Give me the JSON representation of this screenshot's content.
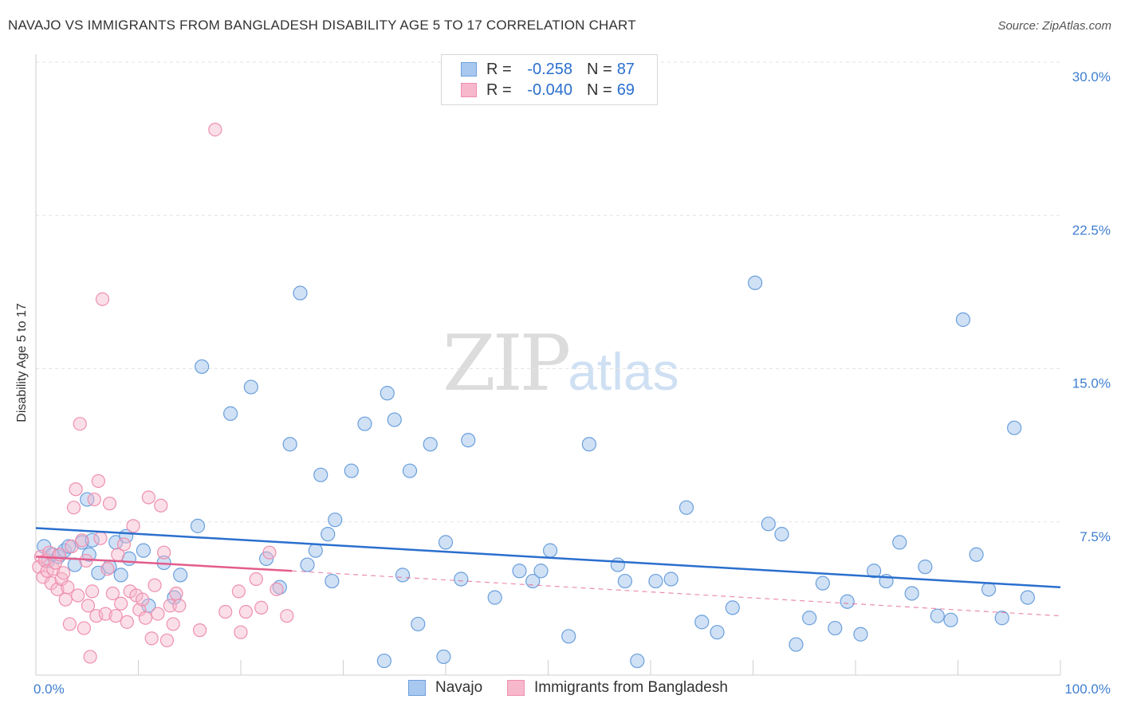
{
  "header": {
    "title": "NAVAJO VS IMMIGRANTS FROM BANGLADESH DISABILITY AGE 5 TO 17 CORRELATION CHART",
    "source": "Source: ZipAtlas.com"
  },
  "watermark": {
    "zip": "ZIP",
    "atlas": "atlas"
  },
  "legend": {
    "rows": [
      {
        "r_label": "R =",
        "r_value": "-0.258",
        "n_label": "N =",
        "n_value": "87"
      },
      {
        "r_label": "R =",
        "r_value": "-0.040",
        "n_label": "N =",
        "n_value": "69"
      }
    ]
  },
  "colors": {
    "navajo_fill": "#a9c8ef",
    "navajo_stroke": "#6a9fdc",
    "navajo_line": "#2a6fce",
    "bangladesh_fill": "#f7b8cc",
    "bangladesh_stroke": "#ee8fae",
    "bangladesh_line": "#e35c8c",
    "tick_label": "#3f7fd0",
    "grid": "#e3e3e3"
  },
  "chart_data": {
    "type": "scatter",
    "title": "NAVAJO VS IMMIGRANTS FROM BANGLADESH DISABILITY AGE 5 TO 17 CORRELATION CHART",
    "xlabel": "",
    "ylabel": "Disability Age 5 to 17",
    "xlim": [
      0,
      100
    ],
    "ylim": [
      0,
      30
    ],
    "x_tick_labels": [
      "0.0%",
      "100.0%"
    ],
    "y_ticks": [
      7.5,
      15.0,
      22.5,
      30.0
    ],
    "y_tick_labels": [
      "7.5%",
      "15.0%",
      "22.5%",
      "30.0%"
    ],
    "grid": true,
    "legend_position": "top-center",
    "series": [
      {
        "name": "Navajo",
        "r": -0.258,
        "n": 87,
        "trend": {
          "x": [
            0,
            100
          ],
          "y": [
            7.2,
            4.3
          ]
        },
        "points": [
          [
            0.8,
            6.3
          ],
          [
            1.2,
            5.6
          ],
          [
            1.6,
            5.9
          ],
          [
            2.2,
            5.8
          ],
          [
            2.8,
            6.1
          ],
          [
            3.2,
            6.3
          ],
          [
            3.8,
            5.4
          ],
          [
            4.5,
            6.5
          ],
          [
            5.2,
            5.9
          ],
          [
            6.1,
            5.0
          ],
          [
            5.5,
            6.6
          ],
          [
            5.0,
            8.6
          ],
          [
            7.2,
            5.3
          ],
          [
            7.8,
            6.5
          ],
          [
            8.3,
            4.9
          ],
          [
            8.8,
            6.8
          ],
          [
            9.1,
            5.7
          ],
          [
            10.5,
            6.1
          ],
          [
            11.0,
            3.4
          ],
          [
            12.5,
            5.5
          ],
          [
            13.5,
            3.8
          ],
          [
            14.1,
            4.9
          ],
          [
            15.8,
            7.3
          ],
          [
            16.2,
            15.1
          ],
          [
            19.0,
            12.8
          ],
          [
            21.0,
            14.1
          ],
          [
            22.5,
            5.7
          ],
          [
            23.8,
            4.3
          ],
          [
            24.8,
            11.3
          ],
          [
            25.8,
            18.7
          ],
          [
            26.5,
            5.4
          ],
          [
            27.3,
            6.1
          ],
          [
            27.8,
            9.8
          ],
          [
            28.5,
            6.9
          ],
          [
            28.9,
            4.6
          ],
          [
            29.2,
            7.6
          ],
          [
            30.8,
            10.0
          ],
          [
            32.1,
            12.3
          ],
          [
            34.0,
            0.7
          ],
          [
            34.3,
            13.8
          ],
          [
            35.0,
            12.5
          ],
          [
            35.8,
            4.9
          ],
          [
            36.5,
            10.0
          ],
          [
            37.3,
            2.5
          ],
          [
            38.5,
            11.3
          ],
          [
            39.8,
            0.9
          ],
          [
            40.0,
            6.5
          ],
          [
            41.5,
            4.7
          ],
          [
            42.2,
            11.5
          ],
          [
            44.8,
            3.8
          ],
          [
            47.2,
            5.1
          ],
          [
            48.5,
            4.6
          ],
          [
            49.3,
            5.1
          ],
          [
            50.2,
            6.1
          ],
          [
            52.0,
            1.9
          ],
          [
            54.0,
            11.3
          ],
          [
            56.8,
            5.4
          ],
          [
            57.5,
            4.6
          ],
          [
            58.7,
            0.7
          ],
          [
            60.5,
            4.6
          ],
          [
            62.0,
            4.7
          ],
          [
            63.5,
            8.2
          ],
          [
            65.0,
            2.6
          ],
          [
            66.5,
            2.1
          ],
          [
            68.0,
            3.3
          ],
          [
            70.2,
            19.2
          ],
          [
            71.5,
            7.4
          ],
          [
            72.8,
            6.9
          ],
          [
            74.2,
            1.5
          ],
          [
            75.5,
            2.8
          ],
          [
            76.8,
            4.5
          ],
          [
            78.0,
            2.3
          ],
          [
            79.2,
            3.6
          ],
          [
            80.5,
            2.0
          ],
          [
            81.8,
            5.1
          ],
          [
            83.0,
            4.6
          ],
          [
            84.3,
            6.5
          ],
          [
            85.5,
            4.0
          ],
          [
            86.8,
            5.3
          ],
          [
            88.0,
            2.9
          ],
          [
            89.3,
            2.7
          ],
          [
            90.5,
            17.4
          ],
          [
            91.8,
            5.9
          ],
          [
            93.0,
            4.2
          ],
          [
            94.3,
            2.8
          ],
          [
            95.5,
            12.1
          ],
          [
            96.8,
            3.8
          ]
        ]
      },
      {
        "name": "Immigrants from Bangladesh",
        "r": -0.04,
        "n": 69,
        "trend": {
          "x": [
            0,
            25
          ],
          "y": [
            5.8,
            5.1
          ]
        },
        "trend_extension": {
          "x": [
            25,
            100
          ],
          "y": [
            5.1,
            2.9
          ]
        },
        "points": [
          [
            0.3,
            5.3
          ],
          [
            0.5,
            5.8
          ],
          [
            0.7,
            4.8
          ],
          [
            0.9,
            5.6
          ],
          [
            1.1,
            5.1
          ],
          [
            1.3,
            6.0
          ],
          [
            1.5,
            4.5
          ],
          [
            1.7,
            5.2
          ],
          [
            1.9,
            5.5
          ],
          [
            2.1,
            4.2
          ],
          [
            2.3,
            5.9
          ],
          [
            2.5,
            4.7
          ],
          [
            2.7,
            5.0
          ],
          [
            2.9,
            3.7
          ],
          [
            3.1,
            4.3
          ],
          [
            3.3,
            2.5
          ],
          [
            3.5,
            6.3
          ],
          [
            3.7,
            8.2
          ],
          [
            3.9,
            9.1
          ],
          [
            4.1,
            3.9
          ],
          [
            4.3,
            12.3
          ],
          [
            4.5,
            6.6
          ],
          [
            4.7,
            2.3
          ],
          [
            4.9,
            5.6
          ],
          [
            5.1,
            3.4
          ],
          [
            5.3,
            0.9
          ],
          [
            5.5,
            4.1
          ],
          [
            5.7,
            8.6
          ],
          [
            5.9,
            2.9
          ],
          [
            6.1,
            9.5
          ],
          [
            6.3,
            6.7
          ],
          [
            6.5,
            18.4
          ],
          [
            6.8,
            3.0
          ],
          [
            7.0,
            5.2
          ],
          [
            7.2,
            8.4
          ],
          [
            7.5,
            4.0
          ],
          [
            7.8,
            2.9
          ],
          [
            8.0,
            5.9
          ],
          [
            8.3,
            3.5
          ],
          [
            8.6,
            6.4
          ],
          [
            8.9,
            2.6
          ],
          [
            9.2,
            4.1
          ],
          [
            9.5,
            7.3
          ],
          [
            9.8,
            3.9
          ],
          [
            10.1,
            3.2
          ],
          [
            10.4,
            3.7
          ],
          [
            10.7,
            2.8
          ],
          [
            11.0,
            8.7
          ],
          [
            11.3,
            1.8
          ],
          [
            11.6,
            4.4
          ],
          [
            11.9,
            3.0
          ],
          [
            12.2,
            8.3
          ],
          [
            12.5,
            6.0
          ],
          [
            12.8,
            1.7
          ],
          [
            13.1,
            3.4
          ],
          [
            13.4,
            2.5
          ],
          [
            13.7,
            4.0
          ],
          [
            14.0,
            3.4
          ],
          [
            16.0,
            2.2
          ],
          [
            17.5,
            26.7
          ],
          [
            18.5,
            3.1
          ],
          [
            19.8,
            4.1
          ],
          [
            20.5,
            3.1
          ],
          [
            21.5,
            4.7
          ],
          [
            22.0,
            3.3
          ],
          [
            23.5,
            4.2
          ],
          [
            24.5,
            2.9
          ],
          [
            22.8,
            6.0
          ],
          [
            20.0,
            2.1
          ]
        ]
      }
    ]
  },
  "bottom_legend": {
    "items": [
      {
        "label": "Navajo"
      },
      {
        "label": "Immigrants from Bangladesh"
      }
    ]
  }
}
